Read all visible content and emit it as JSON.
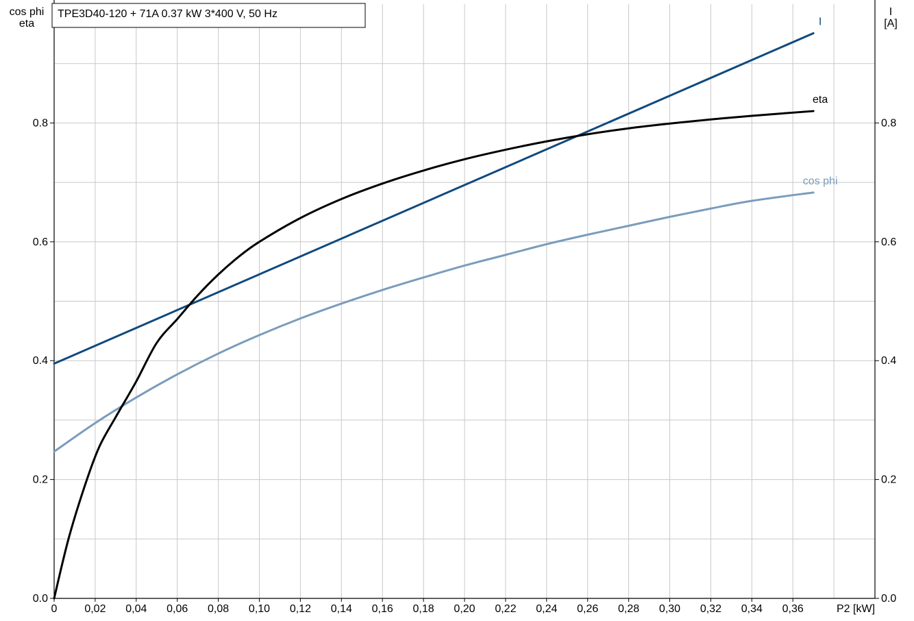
{
  "chart_data": {
    "type": "line",
    "title": "TPE3D40-120 + 71A   0.37 kW   3*400 V, 50 Hz",
    "left_axis_label_line1": "cos phi",
    "left_axis_label_line2": "eta",
    "right_axis_label_line1": "I",
    "right_axis_label_line2": "[A]",
    "xlabel": "P2 [kW]",
    "xlim": [
      0,
      0.4
    ],
    "ylim": [
      0,
      1.0
    ],
    "x_ticks": [
      "0",
      "0,02",
      "0,04",
      "0,06",
      "0,08",
      "0,10",
      "0,12",
      "0,14",
      "0,16",
      "0,18",
      "0,20",
      "0,22",
      "0,24",
      "0,26",
      "0,28",
      "0,30",
      "0,32",
      "0,34",
      "0,36"
    ],
    "x_tick_values": [
      0,
      0.02,
      0.04,
      0.06,
      0.08,
      0.1,
      0.12,
      0.14,
      0.16,
      0.18,
      0.2,
      0.22,
      0.24,
      0.26,
      0.28,
      0.3,
      0.32,
      0.34,
      0.36
    ],
    "y_ticks_left": [
      "0.0",
      "0.2",
      "0.4",
      "0.6",
      "0.8"
    ],
    "y_ticks_right": [
      "0.0",
      "0.2",
      "0.4",
      "0.6",
      "0.8"
    ],
    "y_tick_values": [
      0,
      0.2,
      0.4,
      0.6,
      0.8
    ],
    "grid": true,
    "series": [
      {
        "name": "I",
        "axis": "right",
        "color": "#0f4a7e",
        "x": [
          0,
          0.37
        ],
        "y": [
          0.395,
          0.951
        ]
      },
      {
        "name": "eta",
        "axis": "left",
        "color": "#000000",
        "x": [
          0,
          0.007,
          0.015,
          0.022,
          0.03,
          0.04,
          0.05,
          0.06,
          0.07,
          0.08,
          0.09,
          0.1,
          0.12,
          0.14,
          0.16,
          0.18,
          0.2,
          0.22,
          0.24,
          0.26,
          0.28,
          0.3,
          0.32,
          0.34,
          0.37
        ],
        "y": [
          0,
          0.1,
          0.19,
          0.255,
          0.305,
          0.365,
          0.43,
          0.47,
          0.51,
          0.545,
          0.575,
          0.6,
          0.64,
          0.672,
          0.698,
          0.72,
          0.739,
          0.755,
          0.769,
          0.781,
          0.791,
          0.799,
          0.806,
          0.812,
          0.82
        ]
      },
      {
        "name": "cos phi",
        "axis": "left",
        "color": "#7a9cbc",
        "x": [
          0,
          0.02,
          0.04,
          0.06,
          0.08,
          0.1,
          0.12,
          0.14,
          0.16,
          0.18,
          0.2,
          0.22,
          0.24,
          0.26,
          0.28,
          0.3,
          0.32,
          0.34,
          0.37
        ],
        "y": [
          0.247,
          0.295,
          0.338,
          0.377,
          0.412,
          0.443,
          0.471,
          0.496,
          0.519,
          0.54,
          0.56,
          0.578,
          0.596,
          0.612,
          0.627,
          0.642,
          0.656,
          0.669,
          0.683
        ]
      }
    ]
  }
}
